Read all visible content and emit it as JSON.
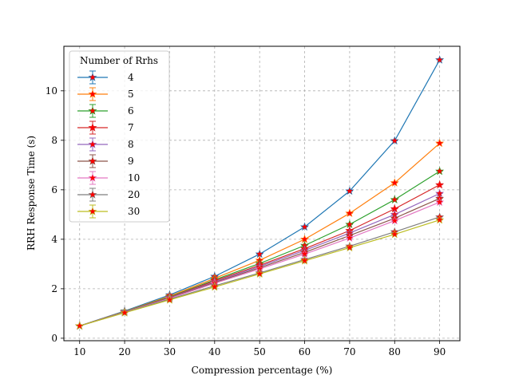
{
  "chart_data": {
    "type": "line",
    "title": "",
    "xlabel": "Compression percentage (%)",
    "ylabel": "RRH Response Time (s)",
    "x": [
      10,
      20,
      30,
      40,
      50,
      60,
      70,
      80,
      90
    ],
    "xlim": [
      6.5,
      94.5
    ],
    "ylim": [
      -0.1,
      11.8
    ],
    "xticks": [
      10,
      20,
      30,
      40,
      50,
      60,
      70,
      80,
      90
    ],
    "yticks": [
      0,
      2,
      4,
      6,
      8,
      10
    ],
    "grid": true,
    "legend_title": "Number of Rrhs",
    "legend_position": "top-left",
    "marker": "star",
    "marker_color": "#ff0000",
    "series": [
      {
        "name": "4",
        "color": "#1f77b4",
        "values": [
          0.5,
          1.1,
          1.75,
          2.5,
          3.4,
          4.5,
          5.95,
          7.98,
          11.25
        ]
      },
      {
        "name": "5",
        "color": "#ff7f0e",
        "values": [
          0.5,
          1.08,
          1.7,
          2.42,
          3.15,
          4.0,
          5.05,
          6.28,
          7.88
        ]
      },
      {
        "name": "6",
        "color": "#2ca02c",
        "values": [
          0.5,
          1.07,
          1.67,
          2.36,
          3.02,
          3.75,
          4.6,
          5.6,
          6.75
        ]
      },
      {
        "name": "7",
        "color": "#d62728",
        "values": [
          0.5,
          1.06,
          1.65,
          2.32,
          2.95,
          3.62,
          4.35,
          5.23,
          6.2
        ]
      },
      {
        "name": "8",
        "color": "#9467bd",
        "values": [
          0.5,
          1.06,
          1.64,
          2.28,
          2.9,
          3.55,
          4.25,
          5.0,
          5.85
        ]
      },
      {
        "name": "9",
        "color": "#8c564b",
        "values": [
          0.5,
          1.05,
          1.63,
          2.25,
          2.85,
          3.47,
          4.15,
          4.85,
          5.65
        ]
      },
      {
        "name": "10",
        "color": "#e377c2",
        "values": [
          0.5,
          1.05,
          1.61,
          2.22,
          2.8,
          3.4,
          4.05,
          4.75,
          5.5
        ]
      },
      {
        "name": "20",
        "color": "#7f7f7f",
        "values": [
          0.5,
          1.04,
          1.58,
          2.12,
          2.64,
          3.18,
          3.72,
          4.3,
          4.9
        ]
      },
      {
        "name": "30",
        "color": "#bcbd22",
        "values": [
          0.5,
          1.03,
          1.55,
          2.07,
          2.6,
          3.13,
          3.66,
          4.2,
          4.78
        ]
      }
    ]
  }
}
